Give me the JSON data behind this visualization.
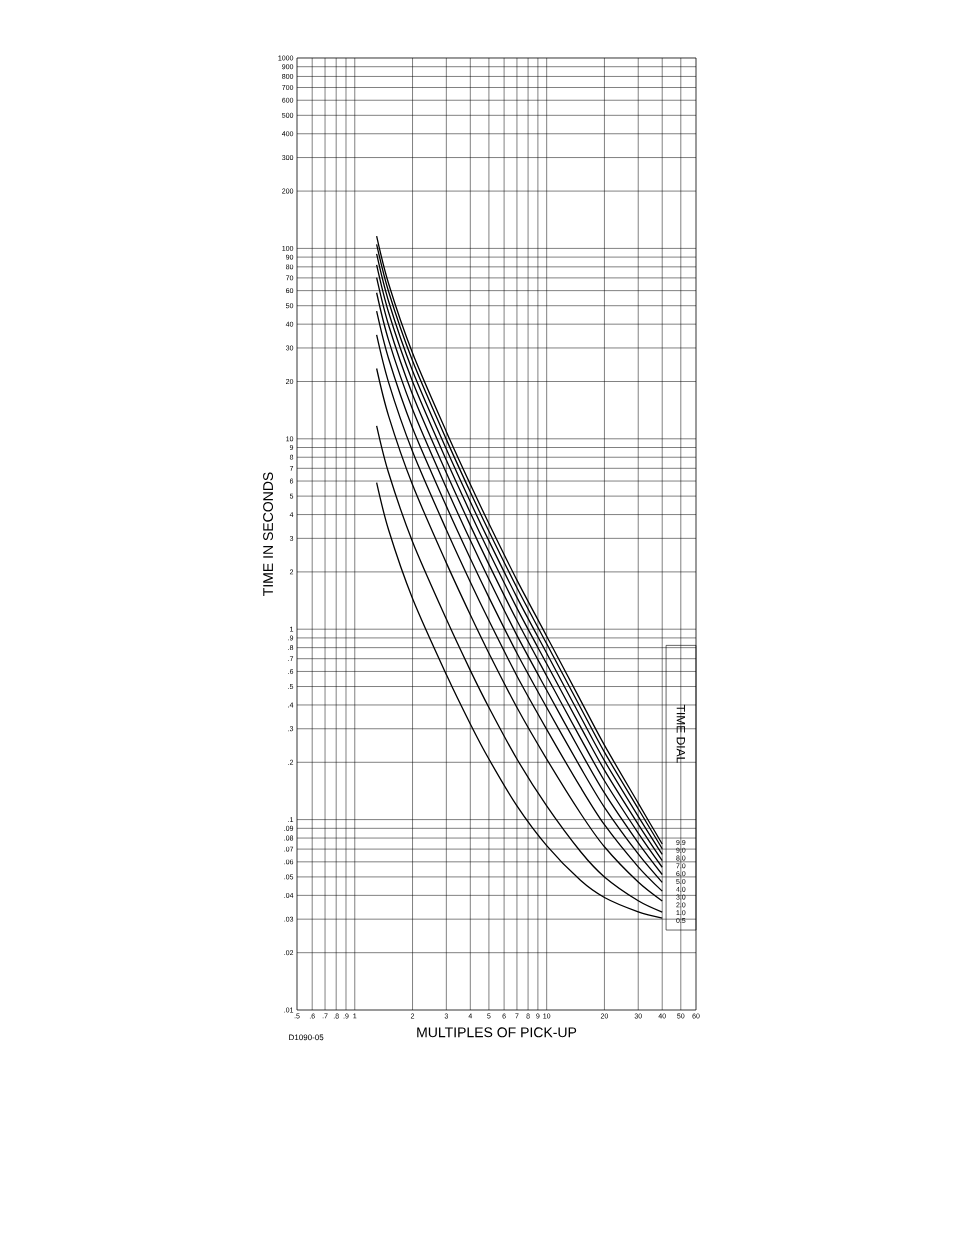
{
  "chart_data": {
    "type": "line",
    "xlabel": "MULTIPLES OF PICK-UP",
    "ylabel": "TIME IN SECONDS",
    "legend_title": "TIME DIAL",
    "annotations": [
      "D1090-05"
    ],
    "log": "xy",
    "grid": true,
    "legend": "right",
    "line_style": "solid",
    "xlim": [
      0.5,
      60
    ],
    "ylim": [
      0.01,
      1000
    ],
    "xticks": [
      {
        "value": 0.5,
        "label": ".5"
      },
      {
        "value": 0.6,
        "label": ".6"
      },
      {
        "value": 0.7,
        "label": ".7"
      },
      {
        "value": 0.8,
        "label": ".8"
      },
      {
        "value": 0.9,
        "label": ".9"
      },
      1,
      2,
      3,
      4,
      5,
      6,
      7,
      8,
      9,
      10,
      20,
      30,
      40,
      50,
      60
    ],
    "yticks": [
      {
        "value": 0.01,
        "label": ".01"
      },
      {
        "value": 0.02,
        "label": ".02"
      },
      {
        "value": 0.03,
        "label": ".03"
      },
      {
        "value": 0.04,
        "label": ".04"
      },
      {
        "value": 0.05,
        "label": ".05"
      },
      {
        "value": 0.06,
        "label": ".06"
      },
      {
        "value": 0.07,
        "label": ".07"
      },
      {
        "value": 0.08,
        "label": ".08"
      },
      {
        "value": 0.09,
        "label": ".09"
      },
      {
        "value": 0.1,
        "label": ".1"
      },
      {
        "value": 0.2,
        "label": ".2"
      },
      {
        "value": 0.3,
        "label": ".3"
      },
      {
        "value": 0.4,
        "label": ".4"
      },
      {
        "value": 0.5,
        "label": ".5"
      },
      {
        "value": 0.6,
        "label": ".6"
      },
      {
        "value": 0.7,
        "label": ".7"
      },
      {
        "value": 0.8,
        "label": ".8"
      },
      {
        "value": 0.9,
        "label": ".9"
      },
      1,
      2,
      3,
      4,
      5,
      6,
      7,
      8,
      9,
      10,
      20,
      30,
      40,
      50,
      60,
      70,
      80,
      90,
      100,
      200,
      300,
      400,
      500,
      600,
      700,
      800,
      900,
      1000
    ],
    "x": [
      1.3,
      1.5,
      2,
      3,
      4,
      5,
      7,
      10,
      15,
      20,
      30,
      40
    ],
    "series": [
      {
        "name": "0.5",
        "color": "#000000",
        "values": [
          5.88,
          3.33,
          1.45,
          0.578,
          0.318,
          0.208,
          0.118,
          0.073,
          0.048,
          0.039,
          0.0328,
          0.0304
        ]
      },
      {
        "name": "1.0",
        "color": "#000000",
        "values": [
          11.7,
          6.63,
          2.88,
          1.13,
          0.608,
          0.388,
          0.208,
          0.118,
          0.068,
          0.05,
          0.0375,
          0.0327
        ]
      },
      {
        "name": "2.0",
        "color": "#000000",
        "values": [
          23.4,
          13.2,
          5.73,
          2.23,
          1.19,
          0.748,
          0.388,
          0.208,
          0.108,
          0.072,
          0.047,
          0.0374
        ]
      },
      {
        "name": "3.0",
        "color": "#000000",
        "values": [
          35.1,
          19.8,
          8.58,
          3.33,
          1.77,
          1.11,
          0.568,
          0.298,
          0.148,
          0.094,
          0.0565,
          0.0421
        ]
      },
      {
        "name": "4.0",
        "color": "#000000",
        "values": [
          46.8,
          26.4,
          11.4,
          4.43,
          2.35,
          1.47,
          0.748,
          0.388,
          0.188,
          0.116,
          0.066,
          0.0468
        ]
      },
      {
        "name": "5.0",
        "color": "#000000",
        "values": [
          58.5,
          33.0,
          14.3,
          5.53,
          2.93,
          1.83,
          0.928,
          0.478,
          0.228,
          0.138,
          0.0755,
          0.0515
        ]
      },
      {
        "name": "6.0",
        "color": "#000000",
        "values": [
          70.2,
          39.6,
          17.1,
          6.63,
          3.51,
          2.19,
          1.11,
          0.568,
          0.268,
          0.16,
          0.085,
          0.0562
        ]
      },
      {
        "name": "7.0",
        "color": "#000000",
        "values": [
          81.9,
          46.2,
          20.0,
          7.73,
          4.09,
          2.55,
          1.29,
          0.658,
          0.308,
          0.182,
          0.0945,
          0.0609
        ]
      },
      {
        "name": "8.0",
        "color": "#000000",
        "values": [
          93.6,
          52.8,
          22.8,
          8.83,
          4.67,
          2.91,
          1.47,
          0.748,
          0.348,
          0.204,
          0.104,
          0.0656
        ]
      },
      {
        "name": "9.0",
        "color": "#000000",
        "values": [
          105,
          59.4,
          25.7,
          9.93,
          5.25,
          3.27,
          1.65,
          0.838,
          0.388,
          0.226,
          0.114,
          0.0703
        ]
      },
      {
        "name": "9.9",
        "color": "#000000",
        "values": [
          116,
          65.4,
          28.2,
          10.9,
          5.77,
          3.59,
          1.81,
          0.919,
          0.424,
          0.246,
          0.122,
          0.0745
        ]
      }
    ]
  }
}
